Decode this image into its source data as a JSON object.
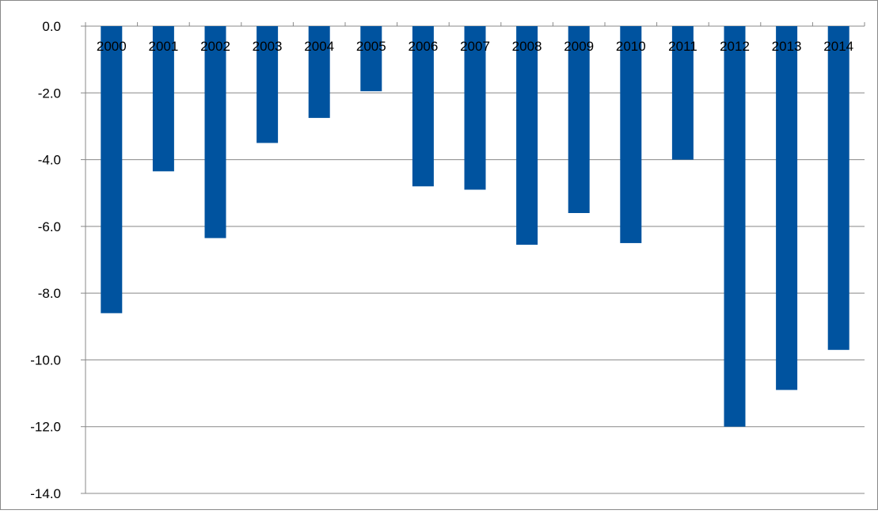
{
  "chart_data": {
    "type": "bar",
    "title": "",
    "xlabel": "",
    "ylabel": "",
    "categories": [
      "2000",
      "2001",
      "2002",
      "2003",
      "2004",
      "2005",
      "2006",
      "2007",
      "2008",
      "2009",
      "2010",
      "2011",
      "2012",
      "2013",
      "2014"
    ],
    "values": [
      -8.6,
      -4.35,
      -6.35,
      -3.5,
      -2.75,
      -1.95,
      -4.8,
      -4.9,
      -6.55,
      -5.6,
      -6.5,
      -4.0,
      -12.0,
      -10.9,
      -9.7
    ],
    "ylim": [
      -14.0,
      0.0
    ],
    "yticks": [
      0,
      -2,
      -4,
      -6,
      -8,
      -10,
      -12,
      -14
    ],
    "ytick_labels": [
      "0.0",
      "-2.0",
      "-4.0",
      "-6.0",
      "-8.0",
      "-10.0",
      "-12.0",
      "-14.0"
    ],
    "grid": true,
    "legend": "none",
    "bar_color": "#00539F",
    "gridline_color": "#888888",
    "frame_color": "#888888"
  }
}
